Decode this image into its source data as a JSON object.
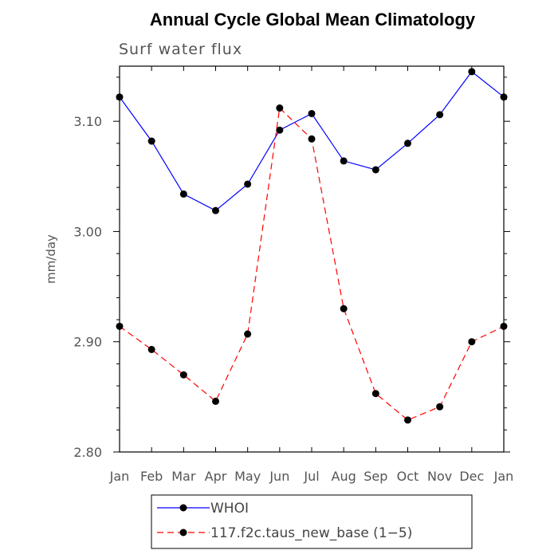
{
  "chart_data": {
    "type": "line",
    "title": "Annual Cycle Global Mean Climatology",
    "subtitle": "Surf water flux",
    "xlabel": "",
    "ylabel": "mm/day",
    "categories": [
      "Jan",
      "Feb",
      "Mar",
      "Apr",
      "May",
      "Jun",
      "Jul",
      "Aug",
      "Sep",
      "Oct",
      "Nov",
      "Dec",
      "Jan"
    ],
    "ylim": [
      2.8,
      3.15
    ],
    "yticks": [
      2.8,
      2.9,
      3.0,
      3.1
    ],
    "ytick_labels": [
      "2.80",
      "2.90",
      "3.00",
      "3.10"
    ],
    "series": [
      {
        "name": "WHOI",
        "color": "#0000ff",
        "dash": "solid",
        "values": [
          3.122,
          3.082,
          3.034,
          3.019,
          3.043,
          3.092,
          3.107,
          3.064,
          3.056,
          3.08,
          3.106,
          3.145,
          3.122
        ]
      },
      {
        "name": "117.f2c.taus_new_base (1−5)",
        "color": "#ff0000",
        "dash": "dashed",
        "values": [
          2.914,
          2.893,
          2.87,
          2.846,
          2.907,
          3.112,
          3.084,
          2.93,
          2.853,
          2.829,
          2.841,
          2.9,
          2.914
        ]
      }
    ],
    "legend_position": "bottom-center",
    "grid": false
  }
}
